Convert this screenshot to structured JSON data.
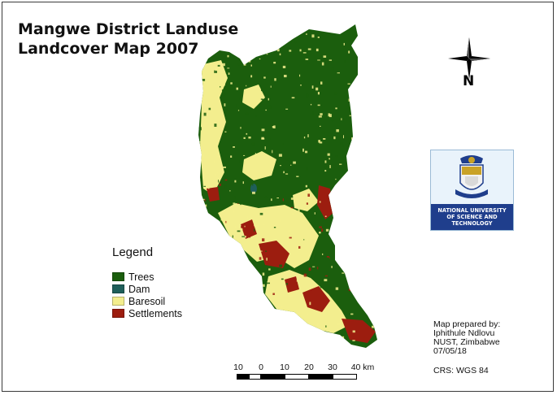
{
  "map": {
    "title_line1": "Mangwe District Landuse",
    "title_line2": "Landcover Map 2007",
    "north_label": "N"
  },
  "legend": {
    "title": "Legend",
    "items": [
      {
        "label": "Trees",
        "color": "#1b5e0d"
      },
      {
        "label": "Dam",
        "color": "#1f5f5a"
      },
      {
        "label": "Baresoil",
        "color": "#f3ee8e"
      },
      {
        "label": "Settlements",
        "color": "#9c1d0f"
      }
    ]
  },
  "logo": {
    "line1": "NATIONAL UNIVERSITY",
    "line2": "OF SCIENCE AND",
    "line3": "TECHNOLOGY"
  },
  "info": {
    "line1": "Map prepared by:",
    "line2": "Iphithule Ndlovu",
    "line3": "NUST, Zimbabwe",
    "line4": "07/05/18",
    "crs": "CRS: WGS 84"
  },
  "scale_bar": {
    "labels": [
      "10",
      "0",
      "10",
      "20",
      "30",
      "40 km"
    ]
  },
  "colors": {
    "trees": "#1b5e0d",
    "dam": "#1f5f5a",
    "baresoil": "#f3ee8e",
    "settlements": "#9c1d0f"
  }
}
